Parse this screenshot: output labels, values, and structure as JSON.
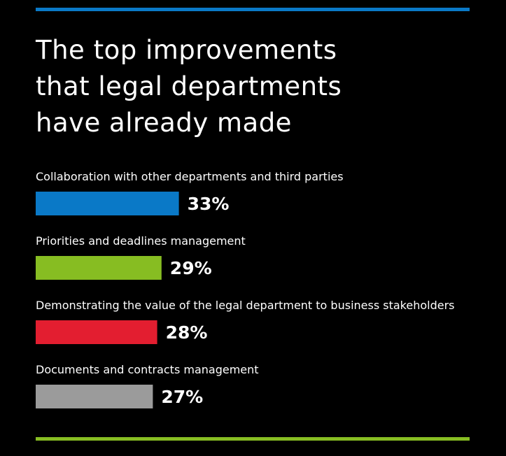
{
  "chart_data": {
    "type": "bar",
    "orientation": "horizontal",
    "title_lines": [
      "The top improvements",
      "that legal departments",
      "have already made"
    ],
    "categories": [
      "Collaboration with other departments and third parties",
      "Priorities and deadlines management",
      "Demonstrating the value of the legal department to business stakeholders",
      "Documents and contracts management"
    ],
    "values": [
      33,
      29,
      28,
      27
    ],
    "value_labels": [
      "33%",
      "29%",
      "28%",
      "27%"
    ],
    "bar_colors": [
      "#0a79c7",
      "#87bd22",
      "#e31e30",
      "#9b9b9b"
    ],
    "unit": "%",
    "grid": false,
    "legend": "none"
  },
  "colors": {
    "background": "#000000",
    "top_rule": "#0a79c7",
    "bottom_rule": "#87bd22",
    "text": "#ffffff"
  }
}
